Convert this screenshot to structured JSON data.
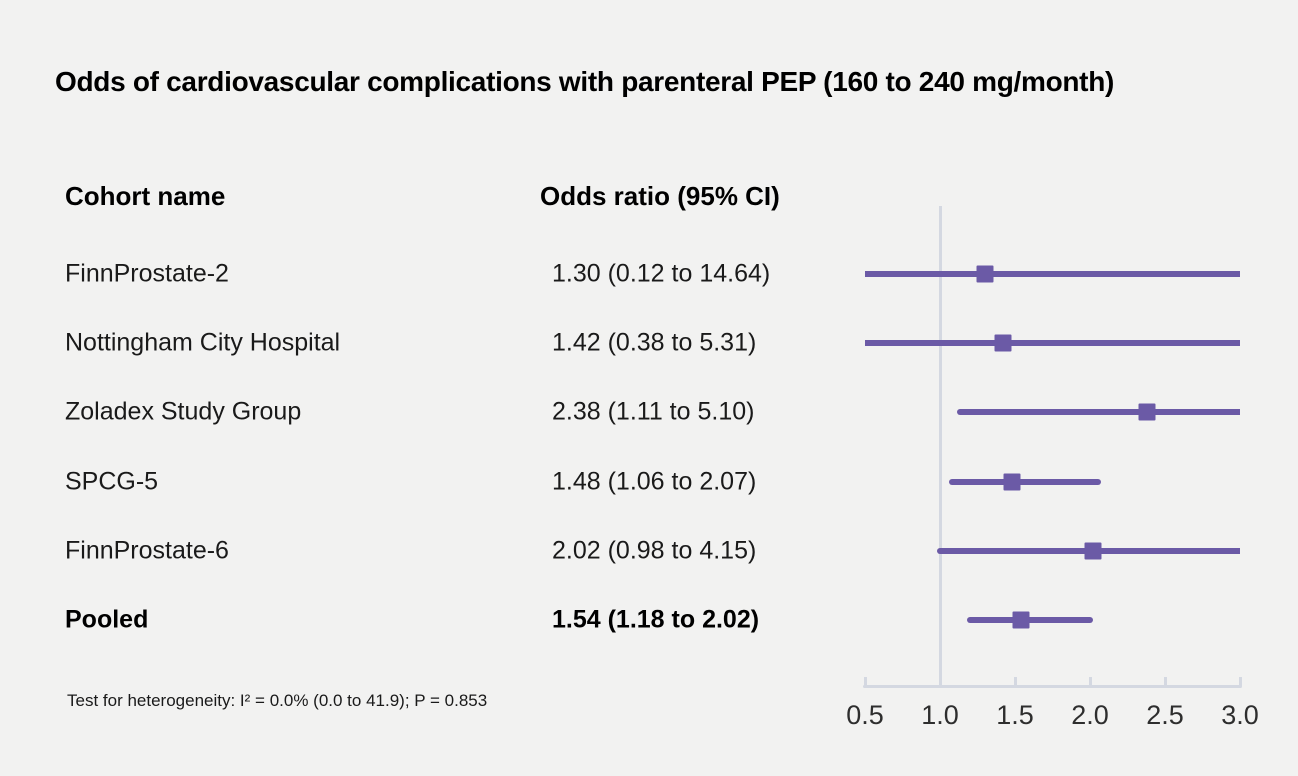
{
  "chart_data": {
    "type": "forest",
    "title": "Odds of cardiovascular complications with parenteral PEP (160 to 240 mg/month)",
    "columns": [
      "Cohort name",
      "Odds ratio (95% CI)"
    ],
    "rows": [
      {
        "cohort": "FinnProstate-2",
        "or": 1.3,
        "ci_low": 0.12,
        "ci_high": 14.64,
        "value_label": "1.30 (0.12 to 14.64)",
        "bold": false
      },
      {
        "cohort": "Nottingham City Hospital",
        "or": 1.42,
        "ci_low": 0.38,
        "ci_high": 5.31,
        "value_label": "1.42 (0.38 to 5.31)",
        "bold": false
      },
      {
        "cohort": "Zoladex Study Group",
        "or": 2.38,
        "ci_low": 1.11,
        "ci_high": 5.1,
        "value_label": "2.38 (1.11 to 5.10)",
        "bold": false
      },
      {
        "cohort": "SPCG-5",
        "or": 1.48,
        "ci_low": 1.06,
        "ci_high": 2.07,
        "value_label": "1.48 (1.06 to 2.07)",
        "bold": false
      },
      {
        "cohort": "FinnProstate-6",
        "or": 2.02,
        "ci_low": 0.98,
        "ci_high": 4.15,
        "value_label": "2.02 (0.98 to 4.15)",
        "bold": false
      },
      {
        "cohort": "Pooled",
        "or": 1.54,
        "ci_low": 1.18,
        "ci_high": 2.02,
        "value_label": "1.54 (1.18 to 2.02)",
        "bold": true
      }
    ],
    "x_axis": {
      "min": 0.5,
      "max": 3.0,
      "ticks": [
        0.5,
        1.0,
        1.5,
        2.0,
        2.5,
        3.0
      ],
      "tick_labels": [
        "0.5",
        "1.0",
        "1.5",
        "2.0",
        "2.5",
        "3.0"
      ],
      "reference_line": 1.0
    },
    "footnote": "Test for heterogeneity: I² = 0.0% (0.0 to 41.9); P = 0.853",
    "colors": {
      "marker": "#6b5aa6",
      "ci_line": "#6b5aa6",
      "axis": "#d4d8e1",
      "background": "#f2f2f1",
      "text": "#1a1a1a"
    }
  }
}
